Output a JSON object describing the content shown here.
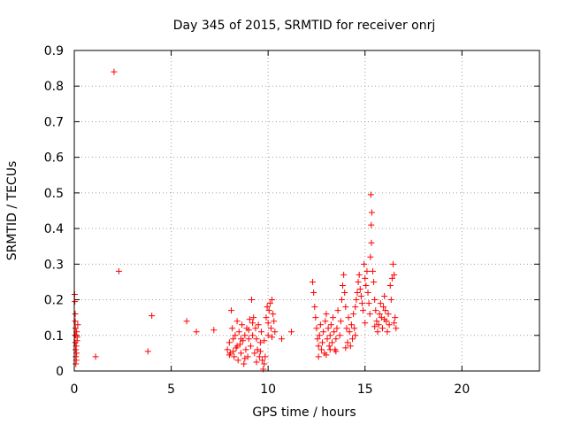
{
  "chart_data": {
    "type": "scatter",
    "title": "Day 345 of 2015, SRMTID for receiver onrj",
    "xlabel": "GPS time / hours",
    "ylabel": "SRMTID / TECUs",
    "xlim": [
      0,
      24
    ],
    "ylim": [
      0,
      0.9
    ],
    "x_ticks": [
      0,
      5,
      10,
      15,
      20
    ],
    "y_ticks": [
      0,
      0.1,
      0.2,
      0.3,
      0.4,
      0.5,
      0.6,
      0.7,
      0.8,
      0.9
    ],
    "x_tick_labels": [
      "0",
      "5",
      "10",
      "15",
      "20"
    ],
    "y_tick_labels": [
      "0",
      "0.1",
      "0.2",
      "0.3",
      "0.4",
      "0.5",
      "0.6",
      "0.7",
      "0.8",
      "0.9"
    ],
    "grid": true,
    "marker": "+",
    "color": "#ff0000",
    "series": [
      {
        "name": "SRMTID",
        "points": [
          [
            0.02,
            0.215
          ],
          [
            0.03,
            0.195
          ],
          [
            0.05,
            0.16
          ],
          [
            0.05,
            0.14
          ],
          [
            0.06,
            0.12
          ],
          [
            0.04,
            0.1
          ],
          [
            0.05,
            0.08
          ],
          [
            0.07,
            0.06
          ],
          [
            0.08,
            0.04
          ],
          [
            0.1,
            0.03
          ],
          [
            0.12,
            0.11
          ],
          [
            0.15,
            0.095
          ],
          [
            0.08,
            0.02
          ],
          [
            0.1,
            0.07
          ],
          [
            0.12,
            0.05
          ],
          [
            0.18,
            0.13
          ],
          [
            0.06,
            0.1
          ],
          [
            0.14,
            0.085
          ],
          [
            1.1,
            0.04
          ],
          [
            2.05,
            0.84
          ],
          [
            2.3,
            0.28
          ],
          [
            3.8,
            0.055
          ],
          [
            4.0,
            0.155
          ],
          [
            5.8,
            0.14
          ],
          [
            6.3,
            0.11
          ],
          [
            7.2,
            0.115
          ],
          [
            7.9,
            0.06
          ],
          [
            8.0,
            0.08
          ],
          [
            8.05,
            0.05
          ],
          [
            8.1,
            0.17
          ],
          [
            8.15,
            0.12
          ],
          [
            8.2,
            0.09
          ],
          [
            8.25,
            0.04
          ],
          [
            8.3,
            0.1
          ],
          [
            8.35,
            0.065
          ],
          [
            8.4,
            0.14
          ],
          [
            8.45,
            0.03
          ],
          [
            8.5,
            0.11
          ],
          [
            8.55,
            0.075
          ],
          [
            8.6,
            0.05
          ],
          [
            8.65,
            0.13
          ],
          [
            8.7,
            0.085
          ],
          [
            8.75,
            0.02
          ],
          [
            8.8,
            0.1
          ],
          [
            8.85,
            0.06
          ],
          [
            8.9,
            0.12
          ],
          [
            8.95,
            0.04
          ],
          [
            9.0,
            0.09
          ],
          [
            9.05,
            0.145
          ],
          [
            9.1,
            0.07
          ],
          [
            9.15,
            0.2
          ],
          [
            9.2,
            0.1
          ],
          [
            9.25,
            0.15
          ],
          [
            9.3,
            0.05
          ],
          [
            9.35,
            0.12
          ],
          [
            9.4,
            0.09
          ],
          [
            9.45,
            0.06
          ],
          [
            9.5,
            0.13
          ],
          [
            9.55,
            0.04
          ],
          [
            9.6,
            0.08
          ],
          [
            9.65,
            0.11
          ],
          [
            9.7,
            0.03
          ],
          [
            9.75,
            0.005
          ],
          [
            9.8,
            0.02
          ],
          [
            9.85,
            0.04
          ],
          [
            9.9,
            0.15
          ],
          [
            9.95,
            0.18
          ],
          [
            10.0,
            0.1
          ],
          [
            10.05,
            0.17
          ],
          [
            10.1,
            0.19
          ],
          [
            10.15,
            0.12
          ],
          [
            10.2,
            0.2
          ],
          [
            10.25,
            0.16
          ],
          [
            10.3,
            0.14
          ],
          [
            10.35,
            0.11
          ],
          [
            8.0,
            0.045
          ],
          [
            8.2,
            0.055
          ],
          [
            8.4,
            0.07
          ],
          [
            8.6,
            0.09
          ],
          [
            8.8,
            0.035
          ],
          [
            9.0,
            0.115
          ],
          [
            9.2,
            0.135
          ],
          [
            9.4,
            0.025
          ],
          [
            9.6,
            0.055
          ],
          [
            9.8,
            0.085
          ],
          [
            10.0,
            0.135
          ],
          [
            10.2,
            0.095
          ],
          [
            10.7,
            0.09
          ],
          [
            11.2,
            0.11
          ],
          [
            12.3,
            0.25
          ],
          [
            12.35,
            0.22
          ],
          [
            12.4,
            0.18
          ],
          [
            12.45,
            0.15
          ],
          [
            12.5,
            0.12
          ],
          [
            12.55,
            0.09
          ],
          [
            12.6,
            0.07
          ],
          [
            12.65,
            0.1
          ],
          [
            12.7,
            0.13
          ],
          [
            12.75,
            0.06
          ],
          [
            12.8,
            0.08
          ],
          [
            12.85,
            0.11
          ],
          [
            12.9,
            0.05
          ],
          [
            12.95,
            0.14
          ],
          [
            13.0,
            0.16
          ],
          [
            13.05,
            0.09
          ],
          [
            13.1,
            0.12
          ],
          [
            13.15,
            0.07
          ],
          [
            13.2,
            0.1
          ],
          [
            13.25,
            0.13
          ],
          [
            13.3,
            0.08
          ],
          [
            13.35,
            0.15
          ],
          [
            13.4,
            0.11
          ],
          [
            13.45,
            0.06
          ],
          [
            13.5,
            0.09
          ],
          [
            13.55,
            0.12
          ],
          [
            13.6,
            0.17
          ],
          [
            13.7,
            0.1
          ],
          [
            13.75,
            0.14
          ],
          [
            13.8,
            0.2
          ],
          [
            13.85,
            0.24
          ],
          [
            13.9,
            0.27
          ],
          [
            13.95,
            0.22
          ],
          [
            14.0,
            0.18
          ],
          [
            14.05,
            0.12
          ],
          [
            14.1,
            0.08
          ],
          [
            14.15,
            0.15
          ],
          [
            14.2,
            0.11
          ],
          [
            14.25,
            0.07
          ],
          [
            14.3,
            0.13
          ],
          [
            14.35,
            0.09
          ],
          [
            14.4,
            0.16
          ],
          [
            14.45,
            0.12
          ],
          [
            14.5,
            0.18
          ],
          [
            14.55,
            0.2
          ],
          [
            14.6,
            0.22
          ],
          [
            14.65,
            0.25
          ],
          [
            14.7,
            0.27
          ],
          [
            14.75,
            0.23
          ],
          [
            14.8,
            0.21
          ],
          [
            14.85,
            0.19
          ],
          [
            14.9,
            0.17
          ],
          [
            14.95,
            0.3
          ],
          [
            15.0,
            0.26
          ],
          [
            15.05,
            0.24
          ],
          [
            15.1,
            0.28
          ],
          [
            15.15,
            0.22
          ],
          [
            15.2,
            0.19
          ],
          [
            15.25,
            0.16
          ],
          [
            15.3,
            0.495
          ],
          [
            15.35,
            0.445
          ],
          [
            15.32,
            0.41
          ],
          [
            15.33,
            0.36
          ],
          [
            15.28,
            0.32
          ],
          [
            15.4,
            0.28
          ],
          [
            15.45,
            0.25
          ],
          [
            15.5,
            0.2
          ],
          [
            15.55,
            0.17
          ],
          [
            15.6,
            0.14
          ],
          [
            15.65,
            0.11
          ],
          [
            15.7,
            0.13
          ],
          [
            15.75,
            0.16
          ],
          [
            15.8,
            0.19
          ],
          [
            15.85,
            0.15
          ],
          [
            15.9,
            0.12
          ],
          [
            15.95,
            0.18
          ],
          [
            16.0,
            0.21
          ],
          [
            16.05,
            0.17
          ],
          [
            16.1,
            0.14
          ],
          [
            16.15,
            0.11
          ],
          [
            16.2,
            0.16
          ],
          [
            16.25,
            0.13
          ],
          [
            16.3,
            0.24
          ],
          [
            16.35,
            0.2
          ],
          [
            16.4,
            0.26
          ],
          [
            16.45,
            0.3
          ],
          [
            16.5,
            0.27
          ],
          [
            16.55,
            0.15
          ],
          [
            16.6,
            0.12
          ],
          [
            13.0,
            0.045
          ],
          [
            13.5,
            0.055
          ],
          [
            14.0,
            0.065
          ],
          [
            14.5,
            0.1
          ],
          [
            15.0,
            0.135
          ],
          [
            15.5,
            0.125
          ],
          [
            16.0,
            0.145
          ],
          [
            16.5,
            0.135
          ],
          [
            12.6,
            0.04
          ],
          [
            13.2,
            0.06
          ]
        ]
      }
    ]
  }
}
